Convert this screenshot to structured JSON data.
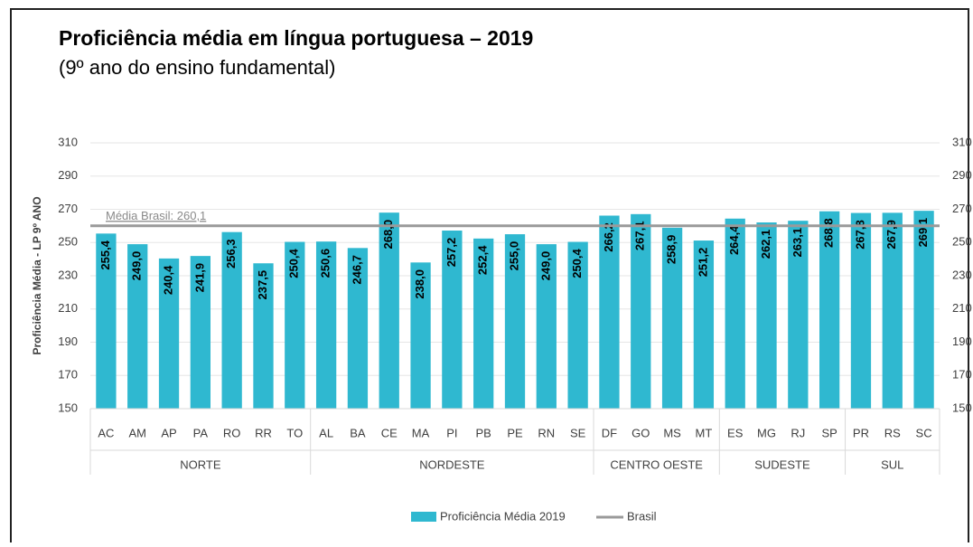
{
  "chart_data": {
    "type": "bar",
    "title": "Proficiência média em língua portuguesa – 2019",
    "subtitle": "(9º ano do ensino fundamental)",
    "y_label": "Proficiência Média -  LP 9º ANO",
    "categories": [
      "AC",
      "AM",
      "AP",
      "PA",
      "RO",
      "RR",
      "TO",
      "AL",
      "BA",
      "CE",
      "MA",
      "PI",
      "PB",
      "PE",
      "RN",
      "SE",
      "DF",
      "GO",
      "MS",
      "MT",
      "ES",
      "MG",
      "RJ",
      "SP",
      "PR",
      "RS",
      "SC"
    ],
    "groups": [
      {
        "label": "NORTE",
        "size": 7
      },
      {
        "label": "NORDESTE",
        "size": 9
      },
      {
        "label": "CENTRO OESTE",
        "size": 4
      },
      {
        "label": "SUDESTE",
        "size": 4
      },
      {
        "label": "SUL",
        "size": 3
      }
    ],
    "series": [
      {
        "name": "Proficiência Média 2019",
        "color": "#2fb8d0",
        "values": [
          255.4,
          249.0,
          240.4,
          241.9,
          256.3,
          237.5,
          250.4,
          250.6,
          246.7,
          268.0,
          238.0,
          257.2,
          252.4,
          255.0,
          249.0,
          250.4,
          266.2,
          267.1,
          258.9,
          251.2,
          264.4,
          262.1,
          263.1,
          268.8,
          267.8,
          267.9,
          269.1
        ],
        "value_labels": [
          "255,4",
          "249,0",
          "240,4",
          "241,9",
          "256,3",
          "237,5",
          "250,4",
          "250,6",
          "246,7",
          "268,0",
          "238,0",
          "257,2",
          "252,4",
          "255,0",
          "249,0",
          "250,4",
          "266,2",
          "267,1",
          "258,9",
          "251,2",
          "264,4",
          "262,1",
          "263,1",
          "268,8",
          "267,8",
          "267,9",
          "269,1"
        ]
      }
    ],
    "reference": {
      "name": "Brasil",
      "value": 260.1,
      "label": "Média Brasil: 260,1",
      "color": "#9a9a9a"
    },
    "ylim": [
      150,
      310
    ],
    "yticks": [
      150,
      170,
      190,
      210,
      230,
      250,
      270,
      290,
      310
    ],
    "y2lim": [
      150,
      310
    ],
    "y2ticks": [
      150,
      170,
      190,
      210,
      230,
      250,
      270,
      290,
      310
    ],
    "grid": true
  }
}
